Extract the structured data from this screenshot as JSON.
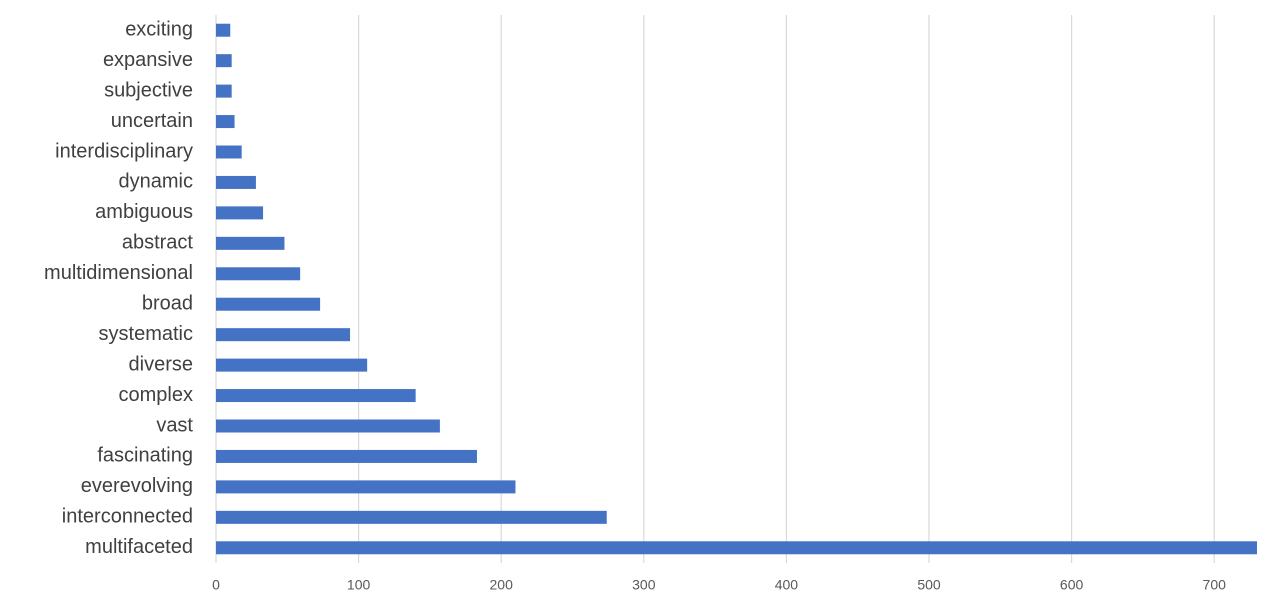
{
  "chart_data": {
    "type": "hbar",
    "categories": [
      "exciting",
      "expansive",
      "subjective",
      "uncertain",
      "interdisciplinary",
      "dynamic",
      "ambiguous",
      "abstract",
      "multidimensional",
      "broad",
      "systematic",
      "diverse",
      "complex",
      "vast",
      "fascinating",
      "everevolving",
      "interconnected",
      "multifaceted"
    ],
    "values": [
      10,
      11,
      11,
      13,
      18,
      28,
      33,
      48,
      59,
      73,
      94,
      106,
      140,
      157,
      183,
      210,
      274,
      730
    ],
    "color": "#4472c4",
    "xlim": [
      0,
      730
    ],
    "xticks": [
      0,
      100,
      200,
      300,
      400,
      500,
      600,
      700
    ],
    "grid": true
  }
}
